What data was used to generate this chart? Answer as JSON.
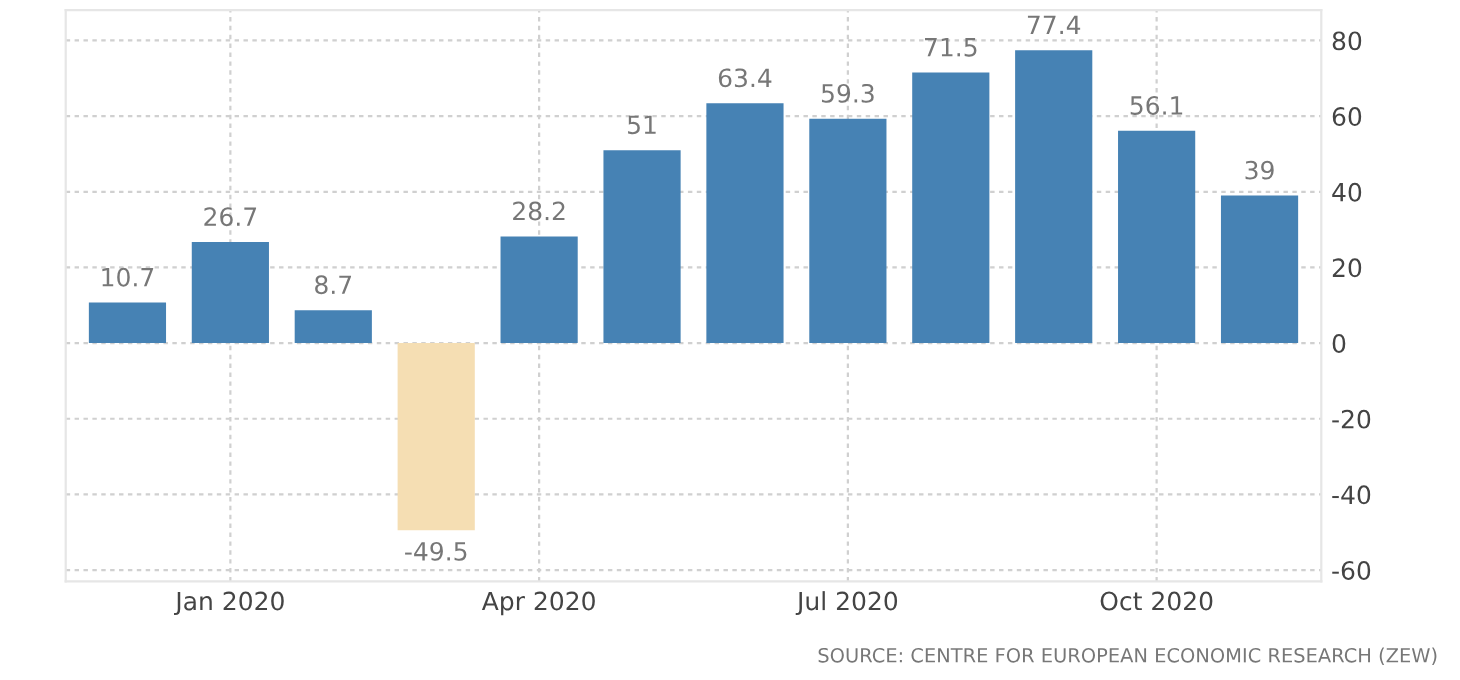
{
  "chart_data": {
    "type": "bar",
    "categories": [
      null,
      "Jan 2020",
      null,
      null,
      "Apr 2020",
      null,
      null,
      "Jul 2020",
      null,
      null,
      "Oct 2020",
      null
    ],
    "values": [
      10.7,
      26.7,
      8.7,
      -49.5,
      28.2,
      51,
      63.4,
      59.3,
      71.5,
      77.4,
      56.1,
      39
    ],
    "colors": [
      "#4682b4",
      "#4682b4",
      "#4682b4",
      "#f5deb3",
      "#4682b4",
      "#4682b4",
      "#4682b4",
      "#4682b4",
      "#4682b4",
      "#4682b4",
      "#4682b4",
      "#4682b4"
    ],
    "data_labels": true,
    "ylim": [
      -63,
      88
    ],
    "yticks": [
      -60,
      -40,
      -20,
      0,
      20,
      40,
      60,
      80
    ],
    "grid": true,
    "annotations": [
      "SOURCE: CENTRE FOR EUROPEAN ECONOMIC RESEARCH (ZEW)"
    ]
  }
}
